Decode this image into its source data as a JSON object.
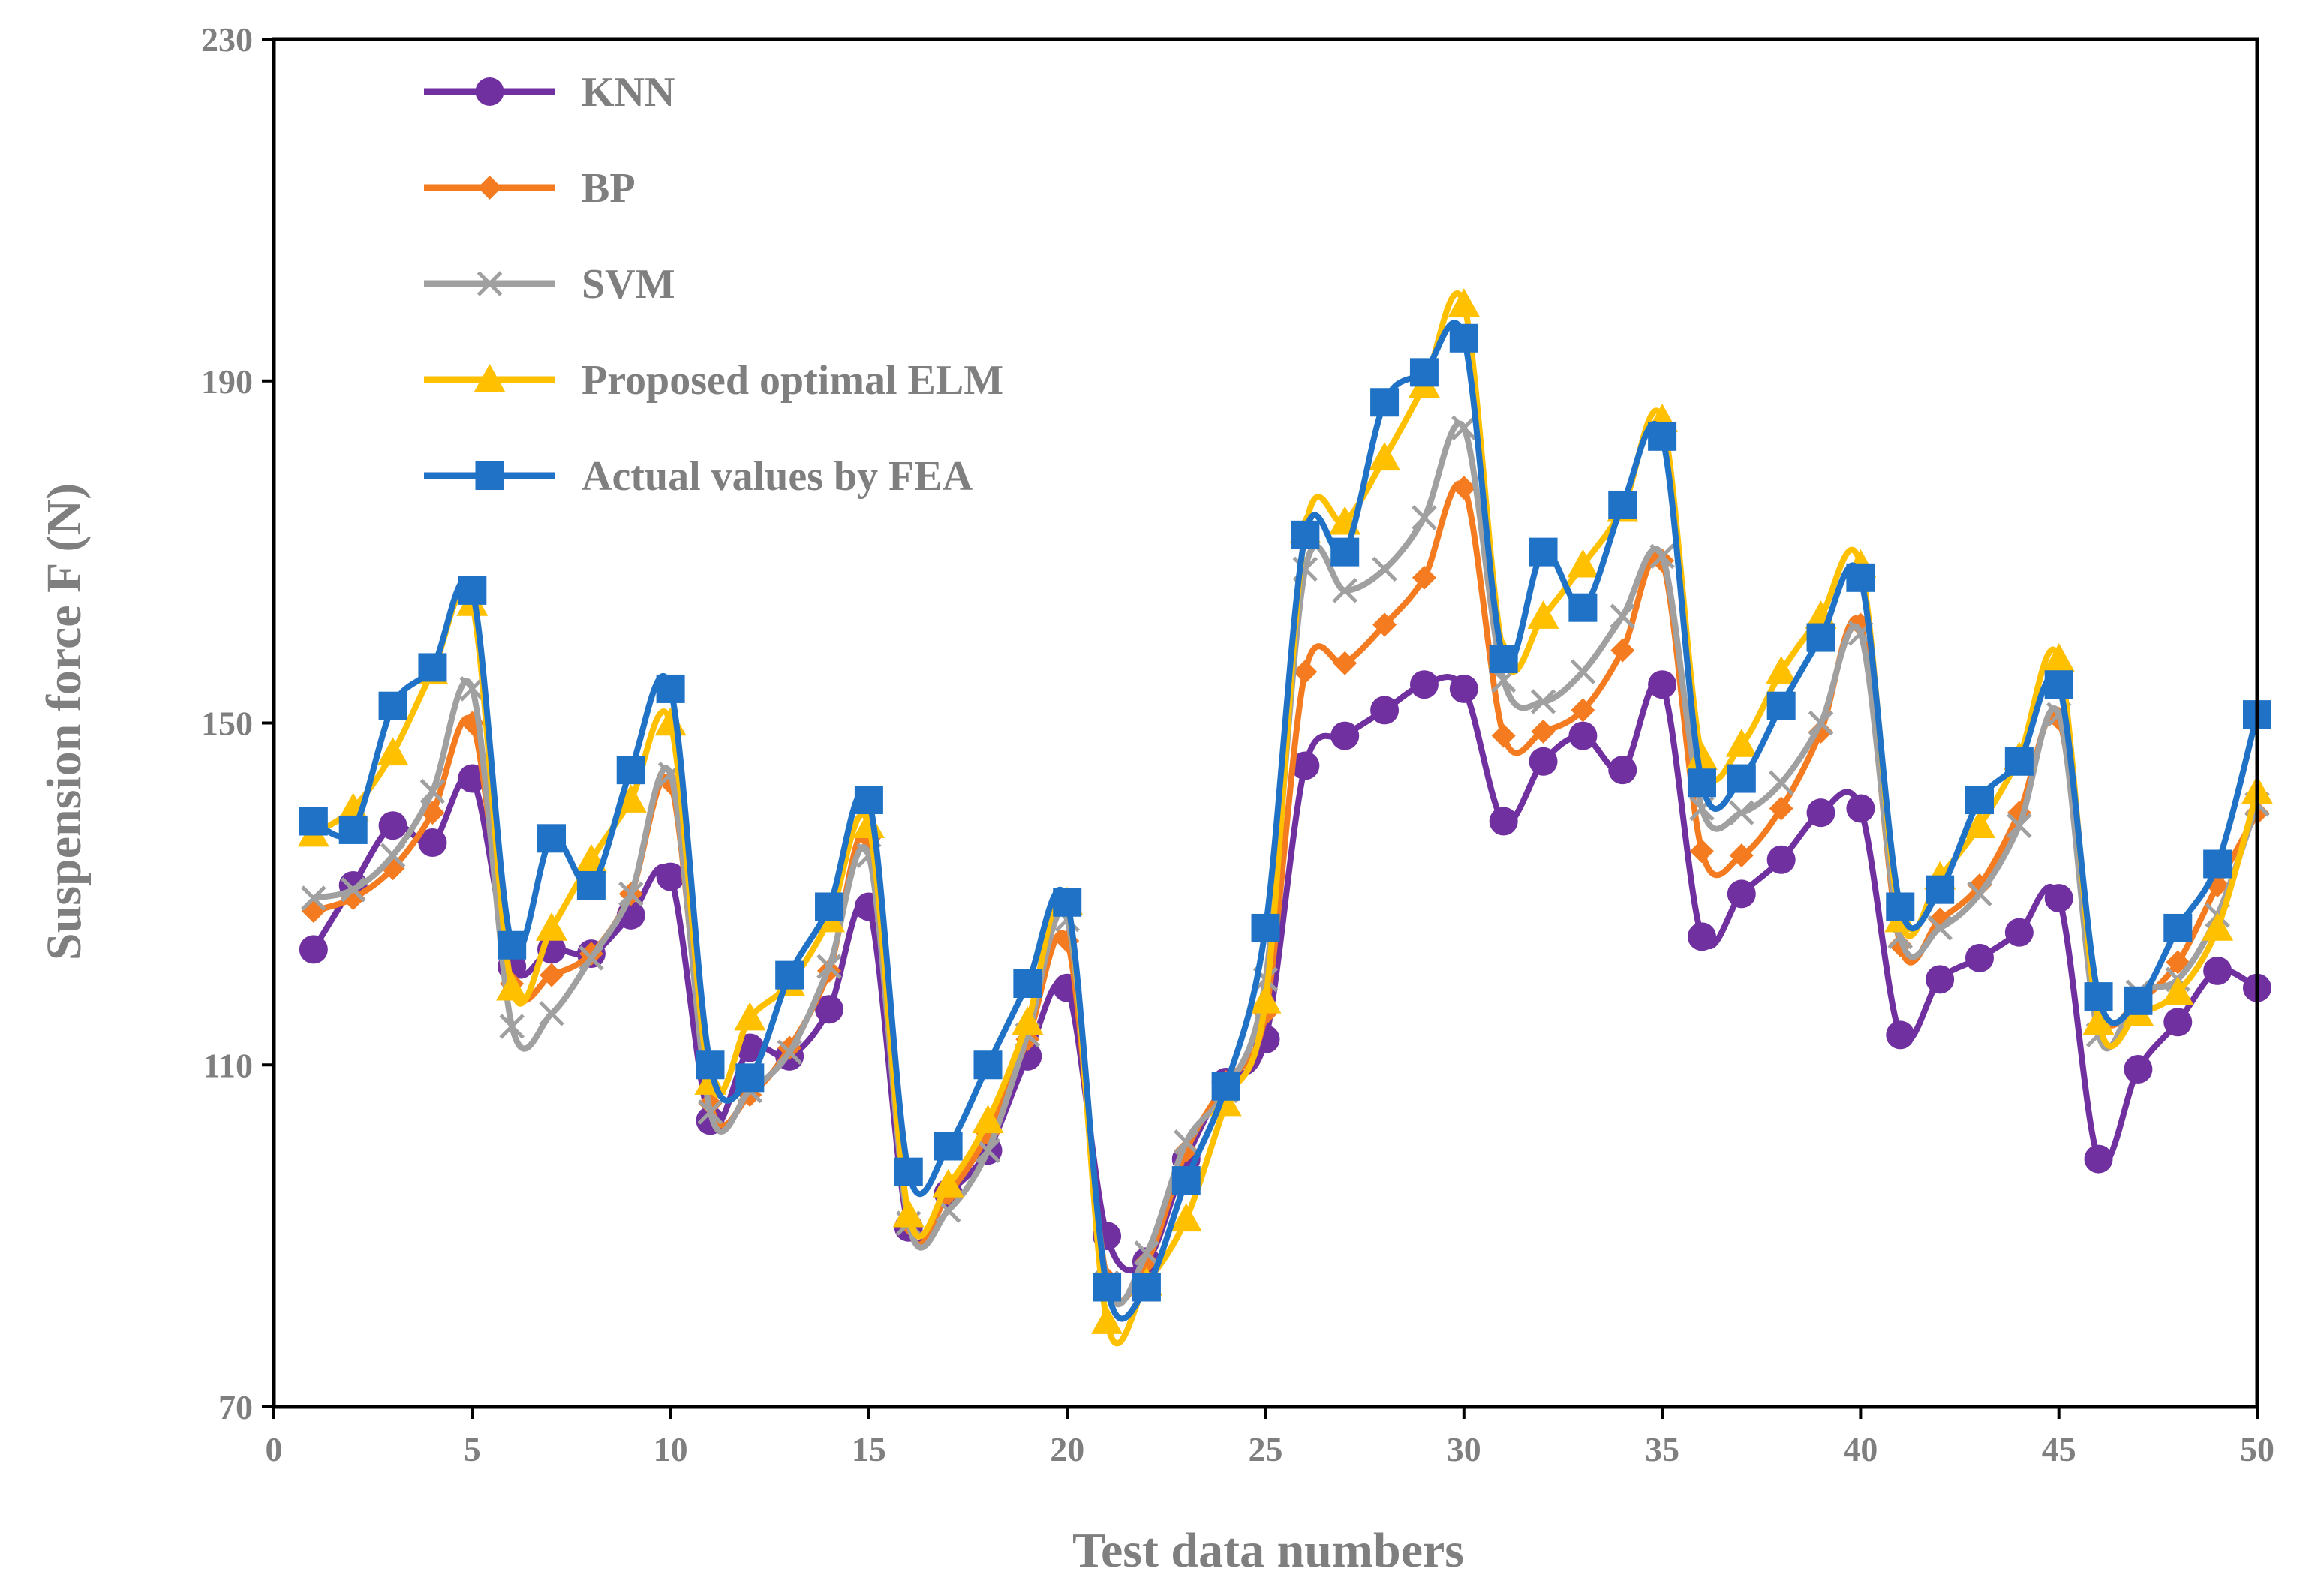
{
  "chart_data": {
    "type": "line",
    "title": "",
    "xlabel": "Test data numbers",
    "ylabel": "Suspension force F (N)",
    "xlim": [
      0,
      50
    ],
    "ylim": [
      70,
      230
    ],
    "xticks": [
      0,
      5,
      10,
      15,
      20,
      25,
      30,
      35,
      40,
      45,
      50
    ],
    "yticks": [
      70,
      110,
      150,
      190,
      230
    ],
    "grid": false,
    "legend_position": "top-left",
    "x": [
      1,
      2,
      3,
      4,
      5,
      6,
      7,
      8,
      9,
      10,
      11,
      12,
      13,
      14,
      15,
      16,
      17,
      18,
      19,
      20,
      21,
      22,
      23,
      24,
      25,
      26,
      27,
      28,
      29,
      30,
      31,
      32,
      33,
      34,
      35,
      36,
      37,
      38,
      39,
      40,
      41,
      42,
      43,
      44,
      45,
      46,
      47,
      48,
      49,
      50
    ],
    "series": [
      {
        "name": "KNN",
        "color": "#7030a0",
        "marker": "circle",
        "values": [
          123.5,
          131,
          138,
          136,
          143.5,
          121.5,
          123.5,
          123,
          127.5,
          132,
          103.5,
          112,
          111,
          116.5,
          128.5,
          91,
          95,
          100,
          111,
          119,
          90,
          87,
          99,
          108,
          113,
          145,
          148.5,
          151.5,
          154.5,
          154,
          138.5,
          145.5,
          148.5,
          144.5,
          154.5,
          125,
          130,
          134,
          139.5,
          140,
          113.5,
          120,
          122.5,
          125.5,
          129.5,
          99,
          109.5,
          115,
          121,
          119
        ]
      },
      {
        "name": "BP",
        "color": "#f47b20",
        "marker": "diamond",
        "values": [
          128,
          129.5,
          133,
          139.5,
          150,
          119.5,
          120.5,
          123,
          130,
          143,
          105.5,
          106.5,
          112,
          121,
          136.5,
          91.5,
          95,
          102,
          113,
          124.5,
          85,
          87,
          100,
          108,
          116,
          156,
          157,
          161.5,
          167,
          177.5,
          148.5,
          149,
          151.5,
          158.5,
          169,
          135,
          134.5,
          140,
          149,
          161.5,
          124,
          127,
          131,
          139.5,
          150.5,
          117,
          117.5,
          122,
          131,
          139.5
        ]
      },
      {
        "name": "SVM",
        "color": "#a0a0a0",
        "marker": "x",
        "values": [
          129.5,
          130.5,
          134.5,
          142,
          154,
          114.5,
          116,
          122.5,
          130,
          144,
          104.5,
          107,
          111.5,
          121.5,
          134.5,
          91.5,
          93,
          100,
          113.5,
          127,
          84.5,
          88,
          101,
          107,
          120,
          168,
          165.5,
          168,
          174,
          184.5,
          155,
          152.5,
          156,
          162.5,
          169.5,
          140,
          139.5,
          143,
          150,
          160.5,
          125,
          126,
          130,
          138,
          151,
          113.5,
          118.5,
          120,
          127.5,
          140.5
        ]
      },
      {
        "name": "Proposed optimal ELM",
        "color": "#ffc000",
        "marker": "triangle",
        "values": [
          137,
          140,
          146.5,
          156,
          164,
          119,
          126,
          134,
          141,
          150,
          108,
          115.5,
          119.5,
          127,
          138,
          92.5,
          96,
          103.5,
          115,
          129,
          80,
          84.5,
          92,
          105.5,
          117.5,
          172.5,
          173.5,
          181,
          189.5,
          199,
          158,
          162.5,
          168.5,
          175,
          185.5,
          146,
          147.5,
          156,
          162.5,
          168.5,
          127,
          132,
          138,
          146,
          157.5,
          115,
          116,
          118.5,
          126,
          142
        ]
      },
      {
        "name": "Actual values by FEA",
        "color": "#1f72c6",
        "marker": "square",
        "values": [
          138.5,
          137.5,
          152,
          156.5,
          165.5,
          124,
          136.5,
          131,
          144.5,
          154,
          110,
          108.5,
          120.5,
          128.5,
          141,
          97.5,
          100.5,
          110,
          119.5,
          129,
          84,
          84,
          96.5,
          107.5,
          126,
          172,
          170,
          187.5,
          191,
          195,
          157.5,
          170,
          163.5,
          175.5,
          183.5,
          143,
          143.5,
          152,
          160,
          167,
          128.5,
          130.5,
          141,
          145.5,
          154.5,
          118,
          117.5,
          126,
          133.5,
          151
        ]
      }
    ]
  }
}
